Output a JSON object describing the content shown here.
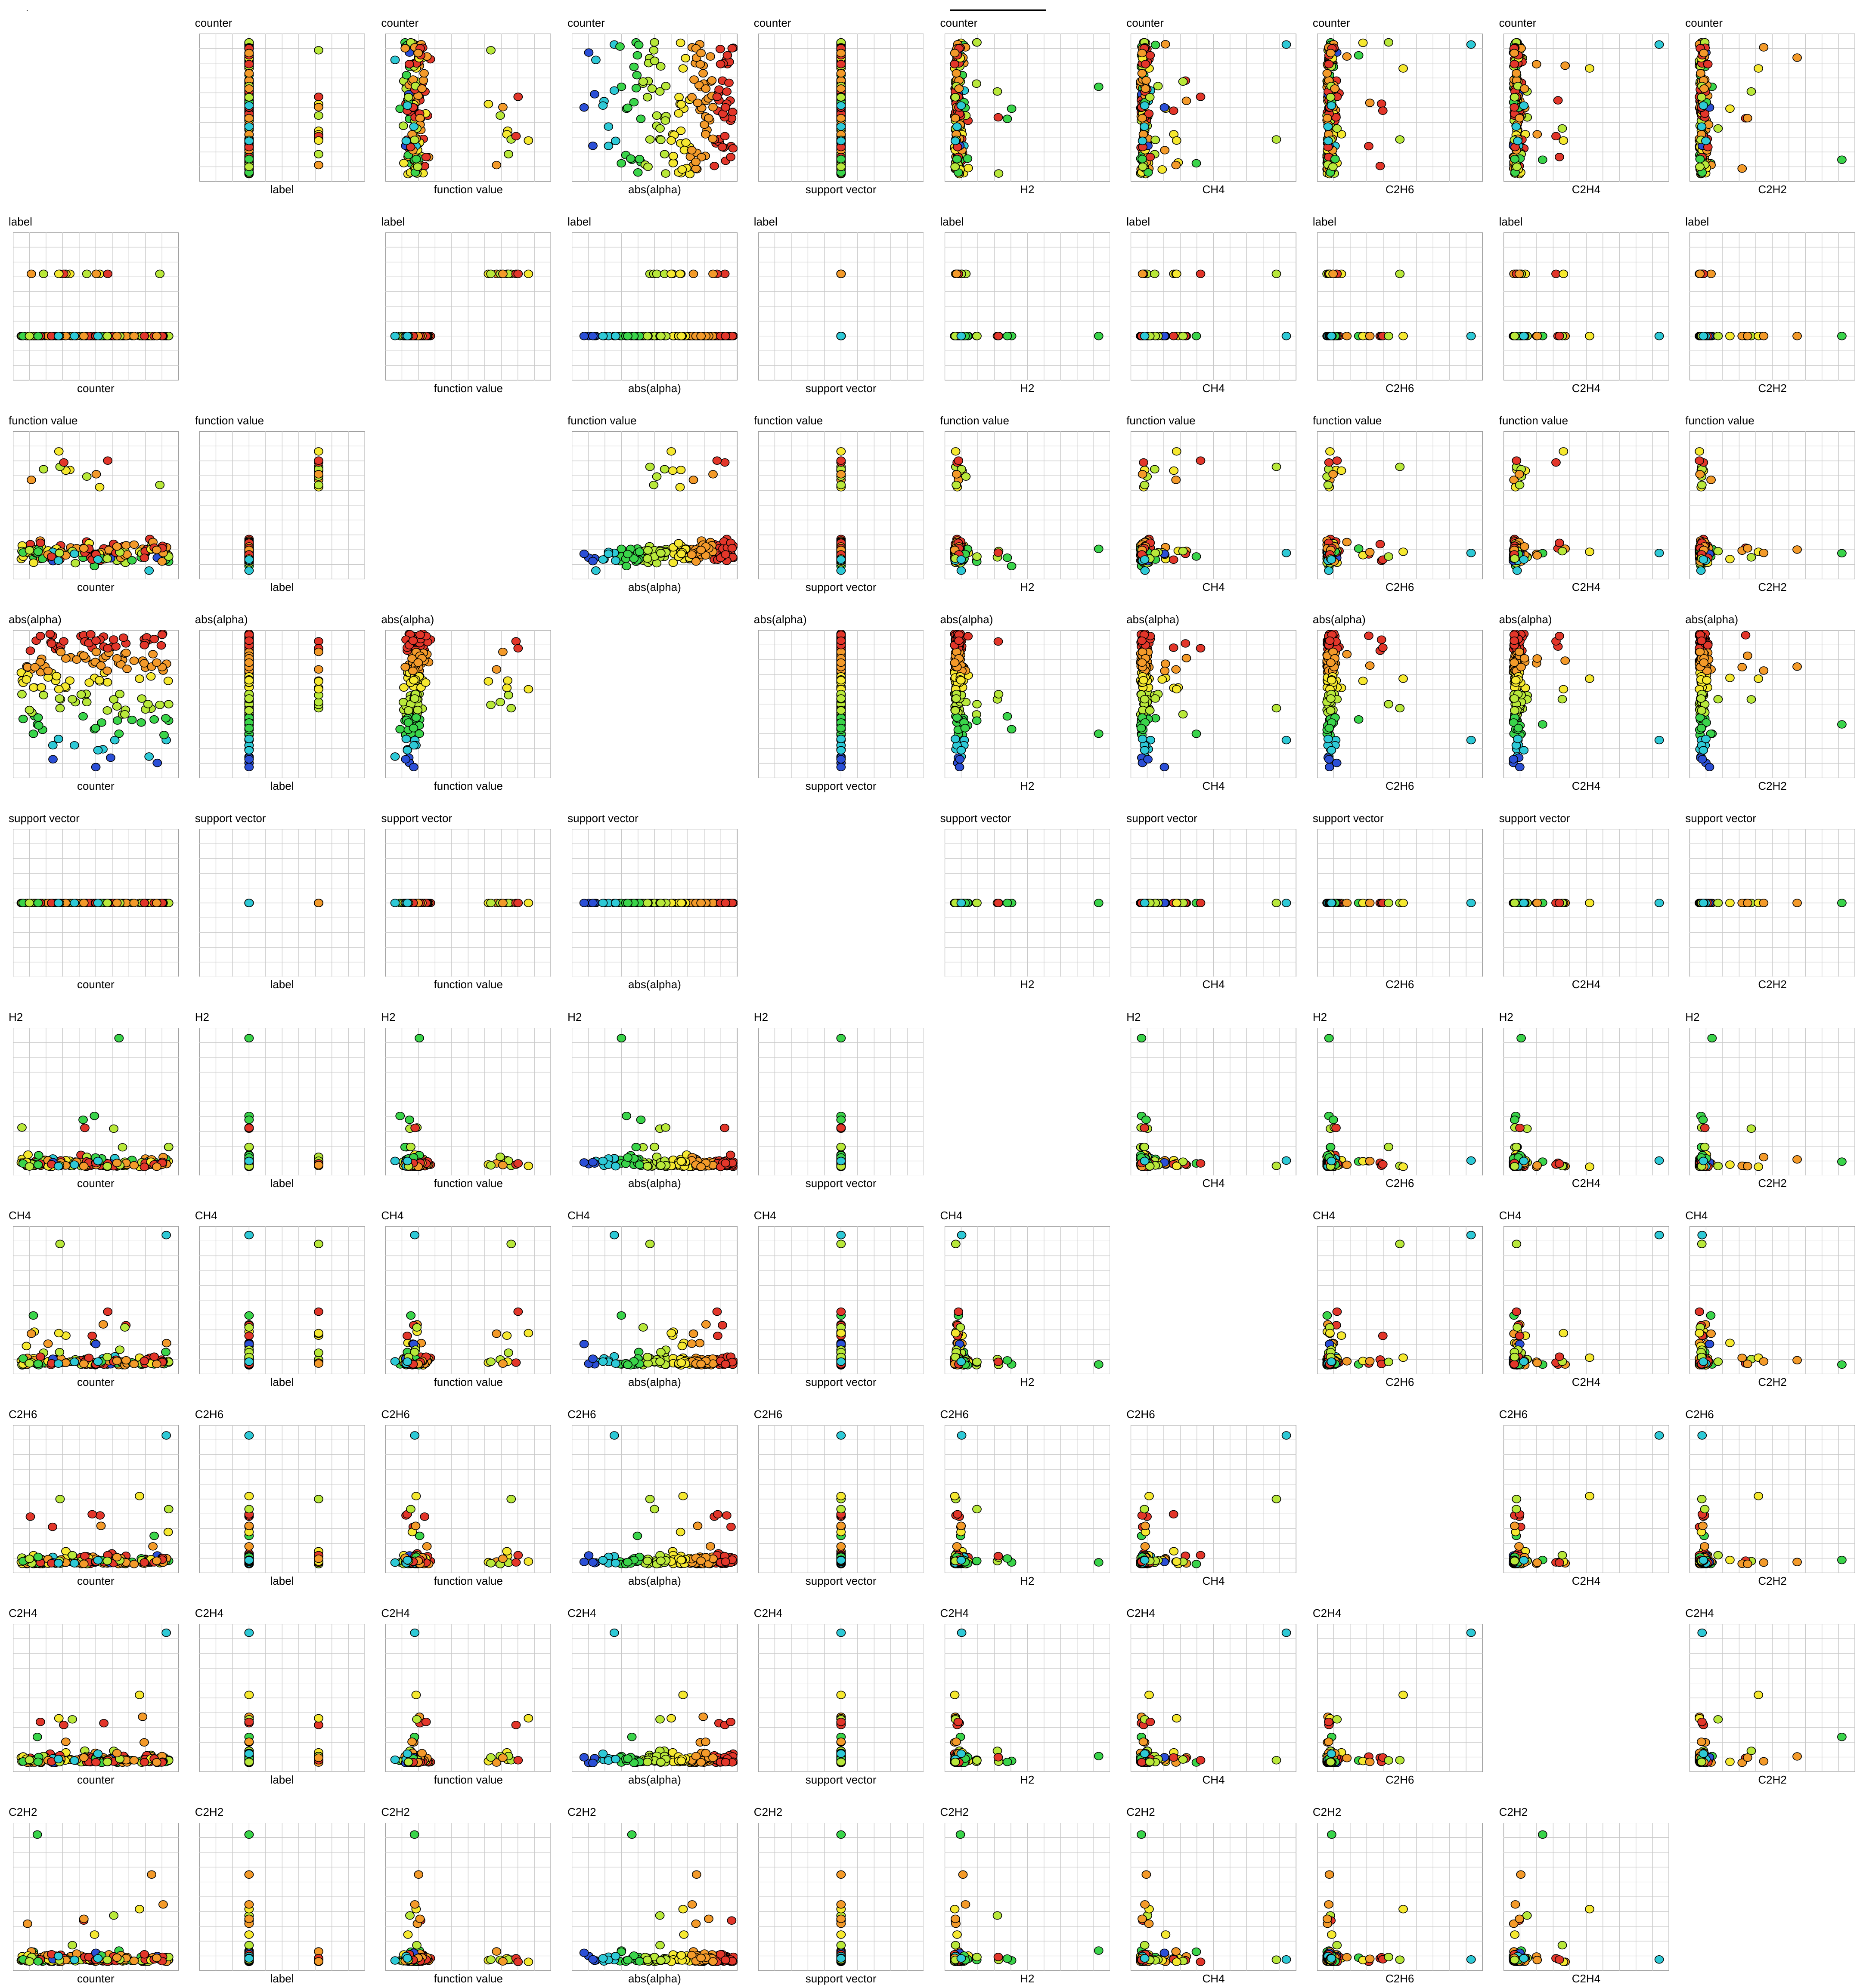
{
  "corner_mark": ".",
  "chart_data": {
    "type": "scatter",
    "title": "",
    "layout": "scatter-plot-matrix",
    "variables": [
      "counter",
      "label",
      "function value",
      "abs(alpha)",
      "support vector",
      "H2",
      "CH4",
      "C2H6",
      "C2H4",
      "C2H2"
    ],
    "grid": true,
    "color_variable": "abs(alpha)",
    "colormap": [
      "#2b4fd6",
      "#2ec9d6",
      "#3ad44a",
      "#b8e83a",
      "#f5e830",
      "#f39a2a",
      "#e2362a"
    ],
    "marker": "circle",
    "marker_edge": "#000000",
    "diagonal": "empty",
    "legend": "none",
    "estimated_relations": {
      "counter": "sample index, roughly uniform over its range",
      "label": "two classes: about 150 points in the lower class, about 12 in the upper class",
      "function value": "clustered near the lower class value; the upper class sits higher",
      "abs(alpha)": "spread over the full range, color encodes this value",
      "support vector": "constant",
      "H2": "mostly low with one extreme outlier",
      "CH4": "mostly low with a few high outliers",
      "C2H6": "mostly low with a few high outliers",
      "C2H4": "mostly low with a few high outliers",
      "C2H2": "mostly low with a few high outliers"
    }
  }
}
